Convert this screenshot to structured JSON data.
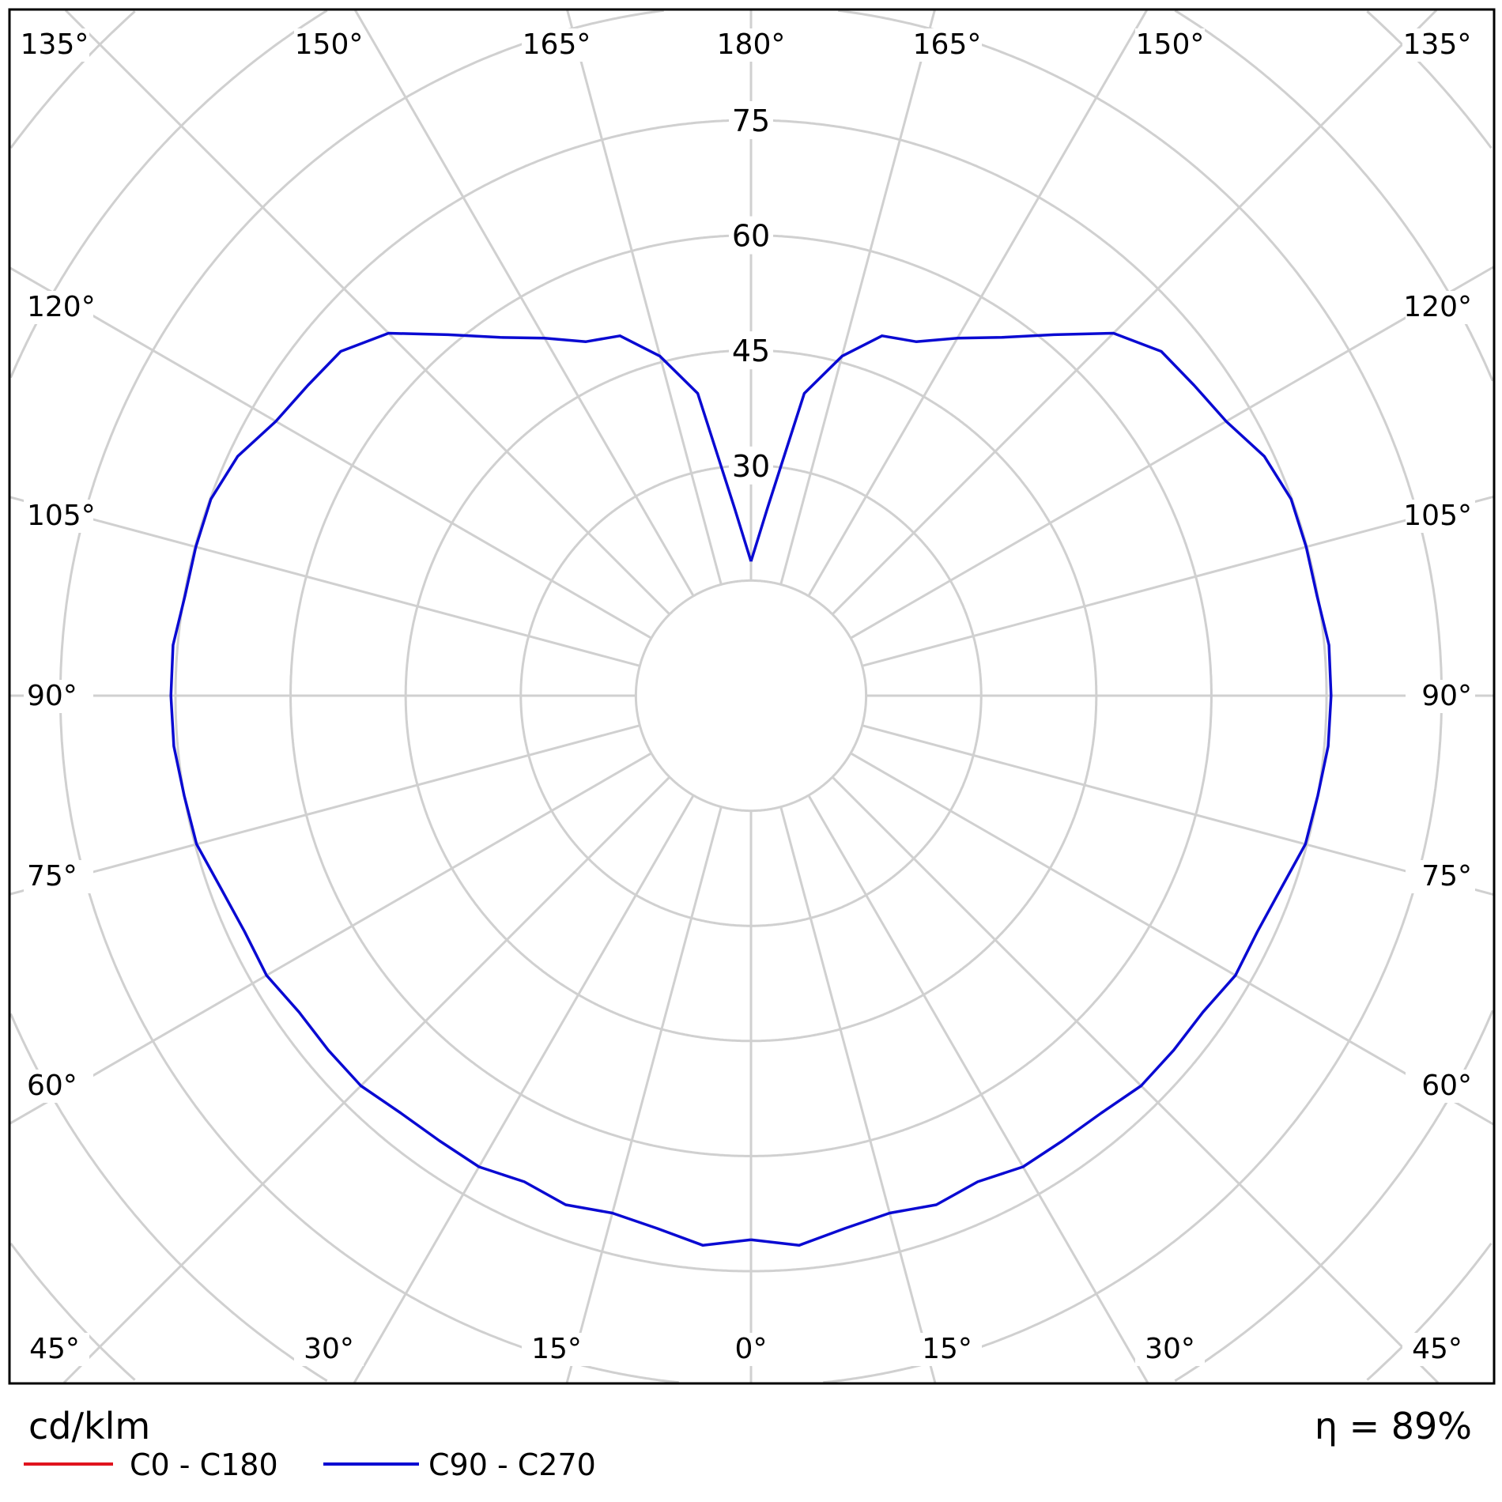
{
  "chart_data": {
    "type": "polar",
    "unit_label": "cd/klm",
    "efficiency_label": "η = 89%",
    "radial_ticks": [
      30,
      45,
      60,
      75
    ],
    "radial_grid_step": 15,
    "radial_max_visible": 120,
    "angle_labels_top": [
      "135°",
      "150°",
      "165°",
      "180°",
      "165°",
      "150°",
      "135°"
    ],
    "angle_labels_left": [
      "120°",
      "105°",
      "90°",
      "75°",
      "60°"
    ],
    "angle_labels_right": [
      "120°",
      "105°",
      "90°",
      "75°",
      "60°"
    ],
    "angle_labels_bottom": [
      "45°",
      "30°",
      "15°",
      "0°",
      "15°",
      "30°",
      "45°"
    ],
    "grid": true,
    "legend_placement": "bottom-left",
    "series": [
      {
        "name": "C0 - C180",
        "color": "#e0141e",
        "gamma": [],
        "values": []
      },
      {
        "name": "C90 - C270",
        "color": "#0a0ad2",
        "symmetric": true,
        "gamma": [
          0,
          5,
          10,
          15,
          20,
          25,
          30,
          35,
          40,
          45,
          50,
          55,
          60,
          65,
          70,
          75,
          80,
          85,
          90,
          95,
          100,
          105,
          110,
          115,
          120,
          125,
          130,
          135,
          140,
          145,
          150,
          155,
          160,
          165,
          170,
          175,
          180
        ],
        "values": [
          70.9,
          71.9,
          70.5,
          69.8,
          70.6,
          69.9,
          70.9,
          70.8,
          71.0,
          71.9,
          71.9,
          71.9,
          72.9,
          72.8,
          73.5,
          74.8,
          75.0,
          75.5,
          75.6,
          75.6,
          74.9,
          74.9,
          74.9,
          73.8,
          71.5,
          70.5,
          69.8,
          66.8,
          61.4,
          57.0,
          53.8,
          50.9,
          49.9,
          45.8,
          40.0,
          24.5,
          17.5
        ]
      }
    ]
  }
}
